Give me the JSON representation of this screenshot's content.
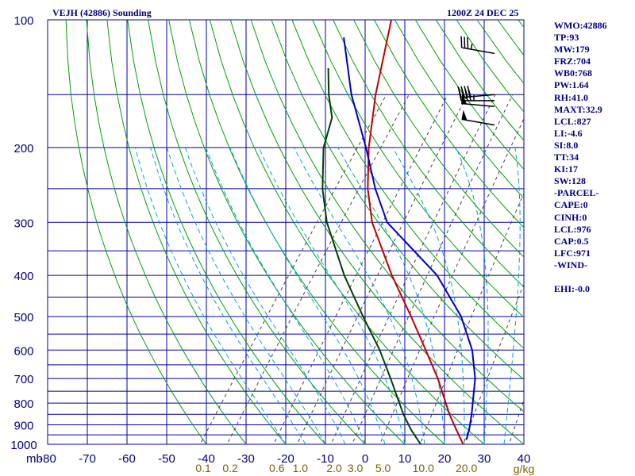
{
  "header": {
    "station": "VEJH (42886) Sounding",
    "time": "1200Z 24 DEC 25"
  },
  "indices": [
    "WMO:42886",
    "TP:93",
    "MW:179",
    "FRZ:704",
    "WB0:768",
    "PW:1.64",
    "RH:41.0",
    "MAXT:32.9",
    "LCL:827",
    "LI:-4.6",
    "SI:8.0",
    "TT:34",
    "KI:17",
    "SW:128",
    "-PARCEL-",
    "CAPE:0",
    "CINH:0",
    "LCL:976",
    "CAP:0.5",
    "LFC:971",
    "-WIND-",
    "",
    "EHI:-0.0"
  ],
  "colors": {
    "grid": "#0000a0",
    "dry_adiabat": "#00a000",
    "moist_adiabat": "#00a0e0",
    "mixing_ratio": "#404040",
    "temperature": "#c00000",
    "dewpoint": "#004000",
    "parcel": "#0000c0",
    "axis_text": "#000080",
    "mixing_text": "#806000"
  },
  "chart_data": {
    "type": "line",
    "title": "VEJH (42886) Sounding",
    "subtitle": "1200Z 24 DEC 25",
    "xlabel": "",
    "ylabel": "mb",
    "xlim": [
      -80,
      40
    ],
    "ylim": [
      1000,
      100
    ],
    "y_scale": "log",
    "y_ticks": [
      1000,
      900,
      800,
      700,
      600,
      500,
      400,
      300,
      200,
      100
    ],
    "y_tick_labels": [
      "1000",
      "900",
      "800",
      "700",
      "600",
      "500",
      "400",
      "300",
      "200",
      "100"
    ],
    "y_axis_title": "mb",
    "x_ticks": [
      -80,
      -70,
      -60,
      -50,
      -40,
      -30,
      -20,
      -10,
      0,
      10,
      20,
      30,
      40
    ],
    "x_tick_labels": [
      "-80",
      "-70",
      "-60",
      "-50",
      "-40",
      "-30",
      "-20",
      "-10",
      "0",
      "10",
      "20",
      "30",
      "40"
    ],
    "extra_isobars": [
      150,
      250,
      350,
      450,
      550,
      650,
      750,
      850,
      950
    ],
    "mixing_ratio_labels": [
      "0.1",
      "0.2",
      "0.6",
      "1.0",
      "2.0",
      "3.0",
      "5.0",
      "10.0",
      "20.0"
    ],
    "mixing_ratio_unit": "g/kg",
    "mixing_ratio_values": [
      0.1,
      0.2,
      0.6,
      1.0,
      2.0,
      3.0,
      5.0,
      10.0,
      20.0,
      40.0
    ],
    "skew_degC_per_decade": 77,
    "series": [
      {
        "role": "temperature",
        "points": [
          [
            1000,
            24.7
          ],
          [
            925,
            20.4
          ],
          [
            850,
            15.8
          ],
          [
            700,
            6.4
          ],
          [
            600,
            -1.8
          ],
          [
            500,
            -11.6
          ],
          [
            400,
            -23.9
          ],
          [
            300,
            -38.5
          ],
          [
            250,
            -45.7
          ],
          [
            200,
            -52.9
          ],
          [
            150,
            -60.8
          ],
          [
            100,
            -70.4
          ]
        ]
      },
      {
        "role": "dewpoint",
        "points": [
          [
            1000,
            14.0
          ],
          [
            925,
            9.0
          ],
          [
            850,
            4.2
          ],
          [
            700,
            -5.5
          ],
          [
            600,
            -13.4
          ],
          [
            500,
            -23.7
          ],
          [
            400,
            -35.9
          ],
          [
            300,
            -49.9
          ],
          [
            250,
            -57.1
          ],
          [
            200,
            -64.3
          ],
          [
            170,
            -67.6
          ],
          [
            150,
            -72.6
          ],
          [
            130,
            -77.5
          ]
        ]
      },
      {
        "role": "parcel",
        "points": [
          [
            976,
            24.7
          ],
          [
            925,
            23.6
          ],
          [
            850,
            21.4
          ],
          [
            700,
            15.8
          ],
          [
            600,
            9.9
          ],
          [
            500,
            1.0
          ],
          [
            400,
            -12.5
          ],
          [
            300,
            -34.7
          ],
          [
            250,
            -43.8
          ],
          [
            200,
            -53.6
          ],
          [
            150,
            -66.9
          ],
          [
            110,
            -79.2
          ]
        ]
      }
    ],
    "wind_barbs": [
      {
        "pressure": 120,
        "direction_deg": 280,
        "speed_kt": 35
      },
      {
        "pressure": 150,
        "direction_deg": 265,
        "speed_kt": 40
      },
      {
        "pressure": 155,
        "direction_deg": 270,
        "speed_kt": 45
      },
      {
        "pressure": 160,
        "direction_deg": 275,
        "speed_kt": 50
      },
      {
        "pressure": 177,
        "direction_deg": 280,
        "speed_kt": 50
      }
    ]
  }
}
